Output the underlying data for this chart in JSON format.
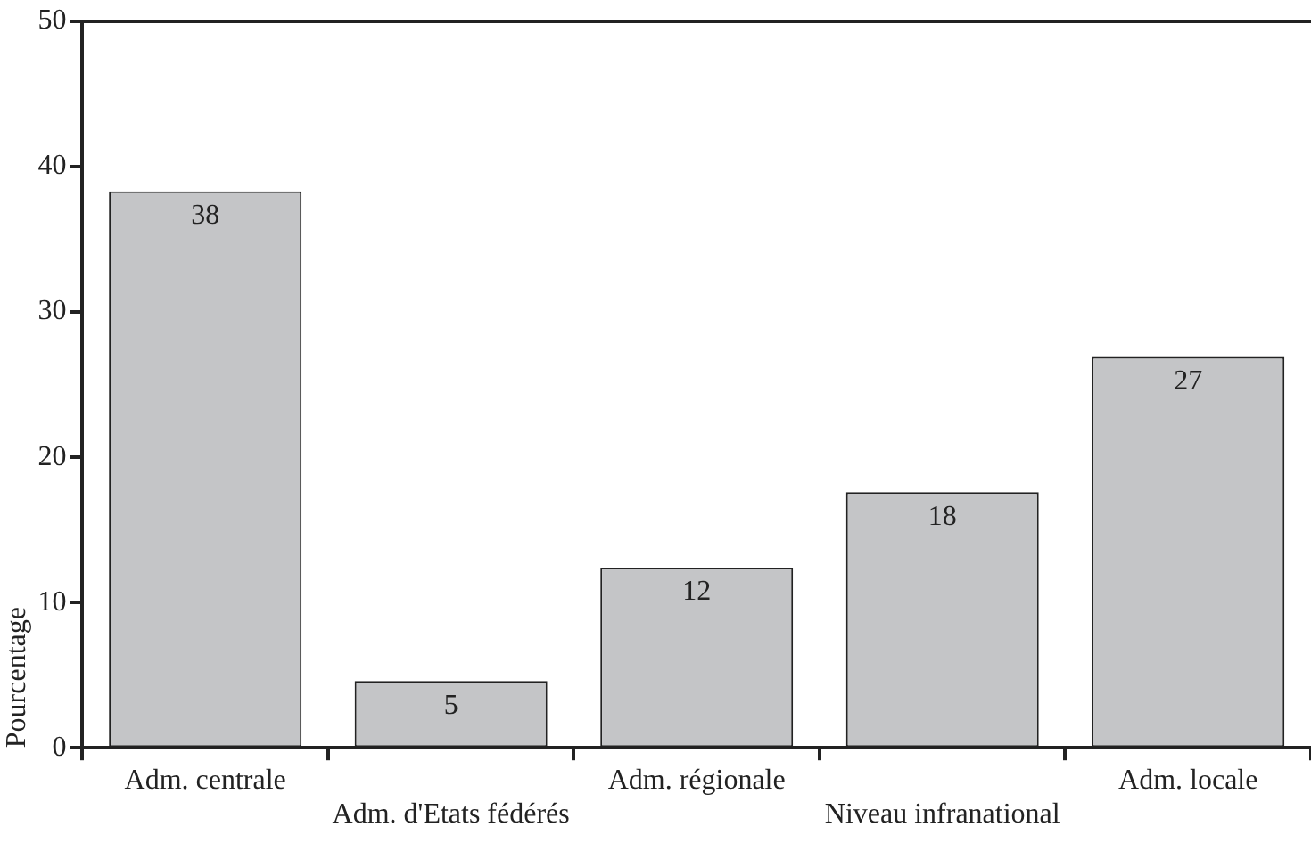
{
  "chart_data": {
    "type": "bar",
    "ylabel": "Pourcentage",
    "categories": [
      "Adm. centrale",
      "Adm. d'Etats fédérés",
      "Adm. régionale",
      "Niveau infranational",
      "Adm. locale"
    ],
    "values": [
      38.3,
      4.6,
      12.4,
      17.6,
      26.9
    ],
    "value_labels": [
      "38",
      "5",
      "12",
      "18",
      "27"
    ],
    "color": "#c4c5c7",
    "ylim": [
      0,
      50
    ],
    "yticks": [
      0,
      10,
      20,
      30,
      40,
      50
    ],
    "grid": false,
    "legend": false
  }
}
